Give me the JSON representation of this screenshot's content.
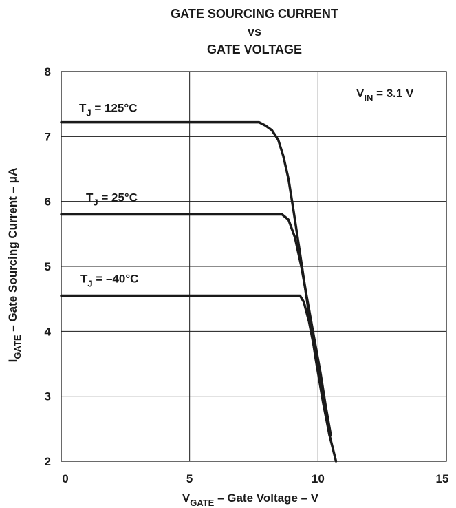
{
  "chart_data": {
    "type": "line",
    "title": [
      "GATE SOURCING CURRENT",
      "vs",
      "GATE VOLTAGE"
    ],
    "xlabel": {
      "main": "V",
      "sub": "GATE",
      "rest": " – Gate Voltage – V"
    },
    "ylabel": {
      "main": "I",
      "sub": "GATE",
      "rest": "  – Gate Sourcing Current – μA"
    },
    "xlim": [
      0,
      15
    ],
    "ylim": [
      2,
      8
    ],
    "xticks": [
      0,
      5,
      10,
      15
    ],
    "yticks": [
      2,
      3,
      4,
      5,
      6,
      7,
      8
    ],
    "grid": true,
    "annotation": {
      "main": "V",
      "sub": "IN",
      "rest": " = 3.1 V"
    },
    "series": [
      {
        "name": "T_J = 125°C",
        "label": {
          "main": "T",
          "sub": "J",
          "rest": " = 125°C"
        },
        "x": [
          0,
          7.7,
          7.95,
          8.2,
          8.45,
          8.65,
          8.85,
          9.05,
          9.3,
          9.6,
          9.9,
          10.2,
          10.45,
          10.7
        ],
        "y": [
          7.22,
          7.22,
          7.17,
          7.1,
          6.95,
          6.7,
          6.35,
          5.85,
          5.2,
          4.4,
          3.6,
          2.9,
          2.4,
          2.0
        ]
      },
      {
        "name": "T_J = 25°C",
        "label": {
          "main": "T",
          "sub": "J",
          "rest": " = 25°C"
        },
        "x": [
          0,
          8.6,
          8.85,
          9.1,
          9.35,
          9.6,
          9.85,
          10.1,
          10.3,
          10.5
        ],
        "y": [
          5.8,
          5.8,
          5.72,
          5.45,
          5.0,
          4.45,
          3.9,
          3.35,
          2.85,
          2.4
        ]
      },
      {
        "name": "T_J = –40°C",
        "label": {
          "main": "T",
          "sub": "J",
          "rest": " = –40°C"
        },
        "x": [
          0,
          9.3,
          9.45,
          9.65,
          9.85,
          10.05,
          10.25,
          10.45
        ],
        "y": [
          4.55,
          4.55,
          4.45,
          4.15,
          3.75,
          3.3,
          2.85,
          2.4
        ]
      }
    ]
  }
}
